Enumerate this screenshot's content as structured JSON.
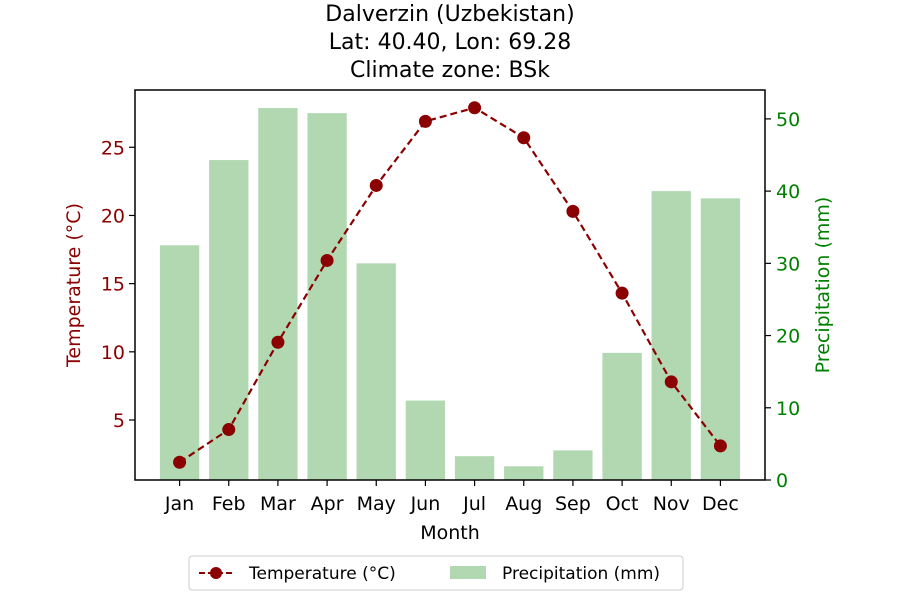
{
  "chart_data": {
    "type": "bar+line",
    "title_lines": [
      "Dalverzin (Uzbekistan)",
      "Lat: 40.40, Lon: 69.28",
      "Climate zone: BSk"
    ],
    "xlabel": "Month",
    "categories": [
      "Jan",
      "Feb",
      "Mar",
      "Apr",
      "May",
      "Jun",
      "Jul",
      "Aug",
      "Sep",
      "Oct",
      "Nov",
      "Dec"
    ],
    "left_axis": {
      "label": "Temperature (°C)",
      "ticks": [
        5,
        10,
        15,
        20,
        25
      ],
      "color": "#8b0000"
    },
    "right_axis": {
      "label": "Precipitation (mm)",
      "ticks": [
        0,
        10,
        20,
        30,
        40,
        50
      ],
      "ylim": [
        0,
        54
      ],
      "color": "#008000"
    },
    "series": [
      {
        "name": "Temperature (°C)",
        "kind": "line",
        "axis": "left",
        "style": "dashed with circle markers",
        "color": "#8b0000",
        "values": [
          1.9,
          4.3,
          10.7,
          16.7,
          22.2,
          26.9,
          27.9,
          25.7,
          20.3,
          14.3,
          7.8,
          3.1
        ]
      },
      {
        "name": "Precipitation (mm)",
        "kind": "bar",
        "axis": "right",
        "color": "#b2d8b2",
        "values": [
          32.5,
          44.3,
          51.5,
          50.8,
          30.0,
          11.0,
          3.3,
          1.9,
          4.1,
          17.6,
          40.0,
          39.0
        ]
      }
    ],
    "legend": {
      "placement": "bottom-center",
      "entries": [
        "Temperature (°C)",
        "Precipitation (mm)"
      ]
    }
  }
}
